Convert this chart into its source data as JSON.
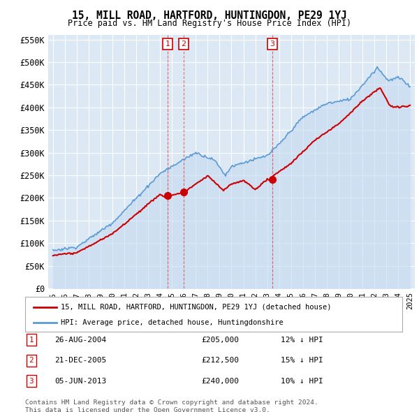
{
  "title": "15, MILL ROAD, HARTFORD, HUNTINGDON, PE29 1YJ",
  "subtitle": "Price paid vs. HM Land Registry's House Price Index (HPI)",
  "legend_label_red": "15, MILL ROAD, HARTFORD, HUNTINGDON, PE29 1YJ (detached house)",
  "legend_label_blue": "HPI: Average price, detached house, Huntingdonshire",
  "transactions": [
    {
      "num": 1,
      "date": "26-AUG-2004",
      "price": 205000,
      "pct": "12%",
      "dir": "↓",
      "year": 2004.65
    },
    {
      "num": 2,
      "date": "21-DEC-2005",
      "price": 212500,
      "pct": "15%",
      "dir": "↓",
      "year": 2005.97
    },
    {
      "num": 3,
      "date": "05-JUN-2013",
      "price": 240000,
      "pct": "10%",
      "dir": "↓",
      "year": 2013.43
    }
  ],
  "footnote1": "Contains HM Land Registry data © Crown copyright and database right 2024.",
  "footnote2": "This data is licensed under the Open Government Licence v3.0.",
  "ylim": [
    0,
    560000
  ],
  "yticks": [
    0,
    50000,
    100000,
    150000,
    200000,
    250000,
    300000,
    350000,
    400000,
    450000,
    500000,
    550000
  ],
  "ytick_labels": [
    "£0",
    "£50K",
    "£100K",
    "£150K",
    "£200K",
    "£250K",
    "£300K",
    "£350K",
    "£400K",
    "£450K",
    "£500K",
    "£550K"
  ],
  "xlim_start": 1994.6,
  "xlim_end": 2025.4,
  "background_color": "#ffffff",
  "plot_bg_color": "#dce9f5",
  "grid_color": "#ffffff",
  "red_color": "#cc0000",
  "blue_color": "#5b9bd5",
  "blue_fill_color": "#c5d9f0",
  "dashed_color": "#dd4444"
}
